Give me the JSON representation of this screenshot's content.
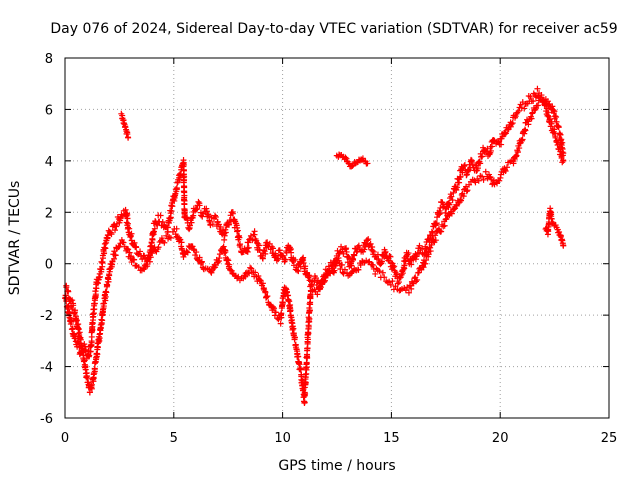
{
  "chart_data": {
    "type": "scatter",
    "title": "Day 076 of 2024, Sidereal Day-to-day VTEC variation (SDTVAR) for receiver ac59",
    "xlabel": "GPS time / hours",
    "ylabel": "SDTVAR / TECUs",
    "xlim": [
      0,
      25
    ],
    "ylim": [
      -6,
      8
    ],
    "xticks": [
      0,
      5,
      10,
      15,
      20,
      25
    ],
    "yticks": [
      -6,
      -4,
      -2,
      0,
      2,
      4,
      6,
      8
    ],
    "xtick_labels": [
      "0",
      "5",
      "10",
      "15",
      "20",
      "25"
    ],
    "ytick_labels": [
      "-6",
      "-4",
      "-2",
      "0",
      "2",
      "4",
      "6",
      "8"
    ],
    "grid": true,
    "marker": "plus",
    "color": "#ff0000",
    "series": [
      {
        "name": "SDTVAR",
        "trace_points": [
          [
            0.0,
            -1.2
          ],
          [
            0.15,
            -1.8
          ],
          [
            0.3,
            -2.4
          ],
          [
            0.45,
            -2.9
          ],
          [
            0.6,
            -3.2
          ],
          [
            0.75,
            -3.5
          ],
          [
            0.9,
            -3.3
          ],
          [
            1.05,
            -3.6
          ],
          [
            1.2,
            -3.2
          ],
          [
            1.3,
            -2.0
          ],
          [
            1.45,
            -0.8
          ],
          [
            1.6,
            -0.4
          ],
          [
            1.8,
            0.5
          ],
          [
            2.0,
            1.2
          ],
          [
            2.2,
            1.3
          ],
          [
            2.4,
            1.6
          ],
          [
            2.6,
            1.9
          ],
          [
            2.8,
            2.1
          ],
          [
            2.9,
            1.4
          ],
          [
            3.1,
            0.9
          ],
          [
            3.3,
            0.5
          ],
          [
            3.5,
            0.3
          ],
          [
            3.7,
            0.2
          ],
          [
            3.9,
            0.4
          ],
          [
            4.1,
            1.4
          ],
          [
            4.3,
            1.8
          ],
          [
            4.5,
            1.6
          ],
          [
            4.7,
            1.3
          ],
          [
            4.9,
            2.2
          ],
          [
            5.1,
            2.9
          ],
          [
            5.3,
            3.5
          ],
          [
            5.45,
            3.9
          ],
          [
            5.5,
            1.8
          ],
          [
            5.7,
            1.4
          ],
          [
            5.9,
            2.0
          ],
          [
            6.1,
            2.3
          ],
          [
            6.3,
            2.0
          ],
          [
            6.5,
            2.1
          ],
          [
            6.7,
            1.6
          ],
          [
            6.9,
            1.7
          ],
          [
            7.1,
            1.4
          ],
          [
            7.3,
            1.1
          ],
          [
            7.5,
            1.6
          ],
          [
            7.7,
            1.9
          ],
          [
            7.9,
            1.3
          ],
          [
            8.1,
            0.6
          ],
          [
            8.3,
            0.4
          ],
          [
            8.5,
            0.9
          ],
          [
            8.7,
            1.1
          ],
          [
            8.9,
            0.6
          ],
          [
            9.1,
            0.3
          ],
          [
            9.3,
            0.8
          ],
          [
            9.5,
            0.6
          ],
          [
            9.7,
            0.2
          ],
          [
            9.9,
            0.5
          ],
          [
            10.1,
            0.2
          ],
          [
            10.3,
            0.7
          ],
          [
            10.5,
            0.1
          ],
          [
            10.7,
            -0.2
          ],
          [
            10.9,
            0.2
          ],
          [
            11.1,
            -0.4
          ],
          [
            11.3,
            -0.8
          ],
          [
            11.5,
            -0.6
          ],
          [
            11.7,
            -0.9
          ],
          [
            11.9,
            -0.5
          ],
          [
            12.1,
            -0.2
          ],
          [
            12.3,
            -0.4
          ],
          [
            12.5,
            0.3
          ],
          [
            12.7,
            0.6
          ],
          [
            12.9,
            0.5
          ],
          [
            13.1,
            0.0
          ],
          [
            13.3,
            0.4
          ],
          [
            13.5,
            0.7
          ],
          [
            13.7,
            0.5
          ],
          [
            13.9,
            0.9
          ],
          [
            14.1,
            0.6
          ],
          [
            14.3,
            0.3
          ],
          [
            14.5,
            0.0
          ],
          [
            14.7,
            0.5
          ],
          [
            14.9,
            0.2
          ],
          [
            15.1,
            -0.2
          ],
          [
            15.3,
            -0.6
          ],
          [
            15.5,
            -0.3
          ],
          [
            15.7,
            0.4
          ],
          [
            15.9,
            0.0
          ],
          [
            16.1,
            0.3
          ],
          [
            16.3,
            0.6
          ],
          [
            16.5,
            0.4
          ],
          [
            16.7,
            0.9
          ],
          [
            16.9,
            1.3
          ],
          [
            17.1,
            1.8
          ],
          [
            17.3,
            2.3
          ],
          [
            17.5,
            2.0
          ],
          [
            17.7,
            2.5
          ],
          [
            17.9,
            2.8
          ],
          [
            18.1,
            3.3
          ],
          [
            18.3,
            3.8
          ],
          [
            18.5,
            3.5
          ],
          [
            18.7,
            4.0
          ],
          [
            18.9,
            3.7
          ],
          [
            19.1,
            4.1
          ],
          [
            19.3,
            4.5
          ],
          [
            19.5,
            4.3
          ],
          [
            19.7,
            4.8
          ],
          [
            19.9,
            4.6
          ],
          [
            20.1,
            4.9
          ],
          [
            20.3,
            5.2
          ],
          [
            20.5,
            5.5
          ],
          [
            20.7,
            5.8
          ],
          [
            20.9,
            6.0
          ],
          [
            21.1,
            6.2
          ],
          [
            21.3,
            6.4
          ],
          [
            21.5,
            6.5
          ],
          [
            21.7,
            6.7
          ],
          [
            21.9,
            6.5
          ],
          [
            22.1,
            6.1
          ],
          [
            22.3,
            5.5
          ],
          [
            22.5,
            5.0
          ],
          [
            22.7,
            4.5
          ],
          [
            22.9,
            4.0
          ]
        ],
        "trace_points_secondary": [
          [
            0.05,
            -1.0
          ],
          [
            0.25,
            -1.4
          ],
          [
            0.45,
            -1.9
          ],
          [
            0.65,
            -2.7
          ],
          [
            0.8,
            -3.4
          ],
          [
            1.0,
            -4.4
          ],
          [
            1.15,
            -5.0
          ],
          [
            1.3,
            -4.5
          ],
          [
            1.45,
            -3.6
          ],
          [
            1.6,
            -2.7
          ],
          [
            1.75,
            -1.8
          ],
          [
            1.9,
            -1.0
          ],
          [
            2.05,
            -0.3
          ],
          [
            2.2,
            0.2
          ],
          [
            2.4,
            0.6
          ],
          [
            2.6,
            0.8
          ],
          [
            2.8,
            0.6
          ],
          [
            3.0,
            0.3
          ],
          [
            3.3,
            -0.1
          ],
          [
            3.6,
            -0.3
          ],
          [
            3.9,
            0.2
          ],
          [
            4.2,
            0.6
          ],
          [
            4.5,
            0.9
          ],
          [
            4.8,
            1.1
          ],
          [
            5.1,
            1.3
          ],
          [
            5.3,
            0.8
          ],
          [
            5.5,
            0.3
          ],
          [
            5.8,
            0.7
          ],
          [
            6.1,
            0.3
          ],
          [
            6.4,
            -0.2
          ],
          [
            6.7,
            -0.4
          ],
          [
            7.0,
            0.1
          ],
          [
            7.3,
            0.6
          ],
          [
            7.6,
            -0.2
          ],
          [
            7.9,
            -0.5
          ],
          [
            8.2,
            -0.6
          ],
          [
            8.5,
            -0.2
          ],
          [
            8.8,
            -0.5
          ],
          [
            9.1,
            -0.9
          ],
          [
            9.3,
            -1.4
          ],
          [
            9.5,
            -1.7
          ],
          [
            9.7,
            -2.0
          ],
          [
            9.9,
            -2.2
          ],
          [
            10.1,
            -0.9
          ],
          [
            10.25,
            -1.3
          ],
          [
            10.4,
            -2.1
          ],
          [
            10.55,
            -2.9
          ],
          [
            10.7,
            -3.6
          ],
          [
            10.85,
            -4.3
          ],
          [
            11.0,
            -5.3
          ],
          [
            11.3,
            -0.9
          ],
          [
            11.6,
            -1.1
          ],
          [
            11.9,
            -0.6
          ],
          [
            12.2,
            -0.1
          ],
          [
            12.5,
            0.2
          ],
          [
            12.8,
            -0.3
          ],
          [
            13.1,
            -0.5
          ],
          [
            13.4,
            -0.2
          ],
          [
            13.7,
            0.1
          ],
          [
            14.0,
            0.0
          ],
          [
            14.3,
            -0.3
          ],
          [
            14.6,
            -0.5
          ],
          [
            14.9,
            -0.7
          ],
          [
            15.2,
            -0.9
          ],
          [
            15.5,
            -1.1
          ],
          [
            15.8,
            -1.0
          ],
          [
            16.1,
            -0.6
          ],
          [
            16.4,
            -0.2
          ],
          [
            16.7,
            0.4
          ],
          [
            17.0,
            1.0
          ],
          [
            17.3,
            1.4
          ],
          [
            17.6,
            1.8
          ],
          [
            17.9,
            2.2
          ],
          [
            18.2,
            2.6
          ],
          [
            18.5,
            3.0
          ],
          [
            18.8,
            3.2
          ],
          [
            19.1,
            3.3
          ],
          [
            19.4,
            3.5
          ],
          [
            19.7,
            3.1
          ],
          [
            20.0,
            3.4
          ],
          [
            20.3,
            3.8
          ],
          [
            20.6,
            3.9
          ],
          [
            20.9,
            4.7
          ],
          [
            21.2,
            5.4
          ],
          [
            21.5,
            5.9
          ],
          [
            21.8,
            6.3
          ],
          [
            22.1,
            6.4
          ],
          [
            22.4,
            6.0
          ],
          [
            22.7,
            5.2
          ],
          [
            22.9,
            4.3
          ]
        ],
        "isolated_segments": [
          [
            [
              2.6,
              5.8
            ],
            [
              2.7,
              5.5
            ],
            [
              2.8,
              5.2
            ],
            [
              2.9,
              4.9
            ]
          ],
          [
            [
              12.5,
              4.2
            ],
            [
              12.7,
              4.2
            ],
            [
              12.9,
              4.1
            ],
            [
              13.1,
              3.8
            ],
            [
              13.3,
              3.9
            ],
            [
              13.5,
              4.0
            ],
            [
              13.7,
              4.1
            ],
            [
              13.9,
              3.9
            ]
          ],
          [
            [
              22.1,
              1.4
            ],
            [
              22.2,
              1.2
            ],
            [
              22.3,
              2.1
            ],
            [
              22.4,
              1.6
            ],
            [
              22.6,
              1.4
            ],
            [
              22.8,
              1.0
            ],
            [
              22.9,
              0.7
            ]
          ]
        ]
      }
    ]
  }
}
